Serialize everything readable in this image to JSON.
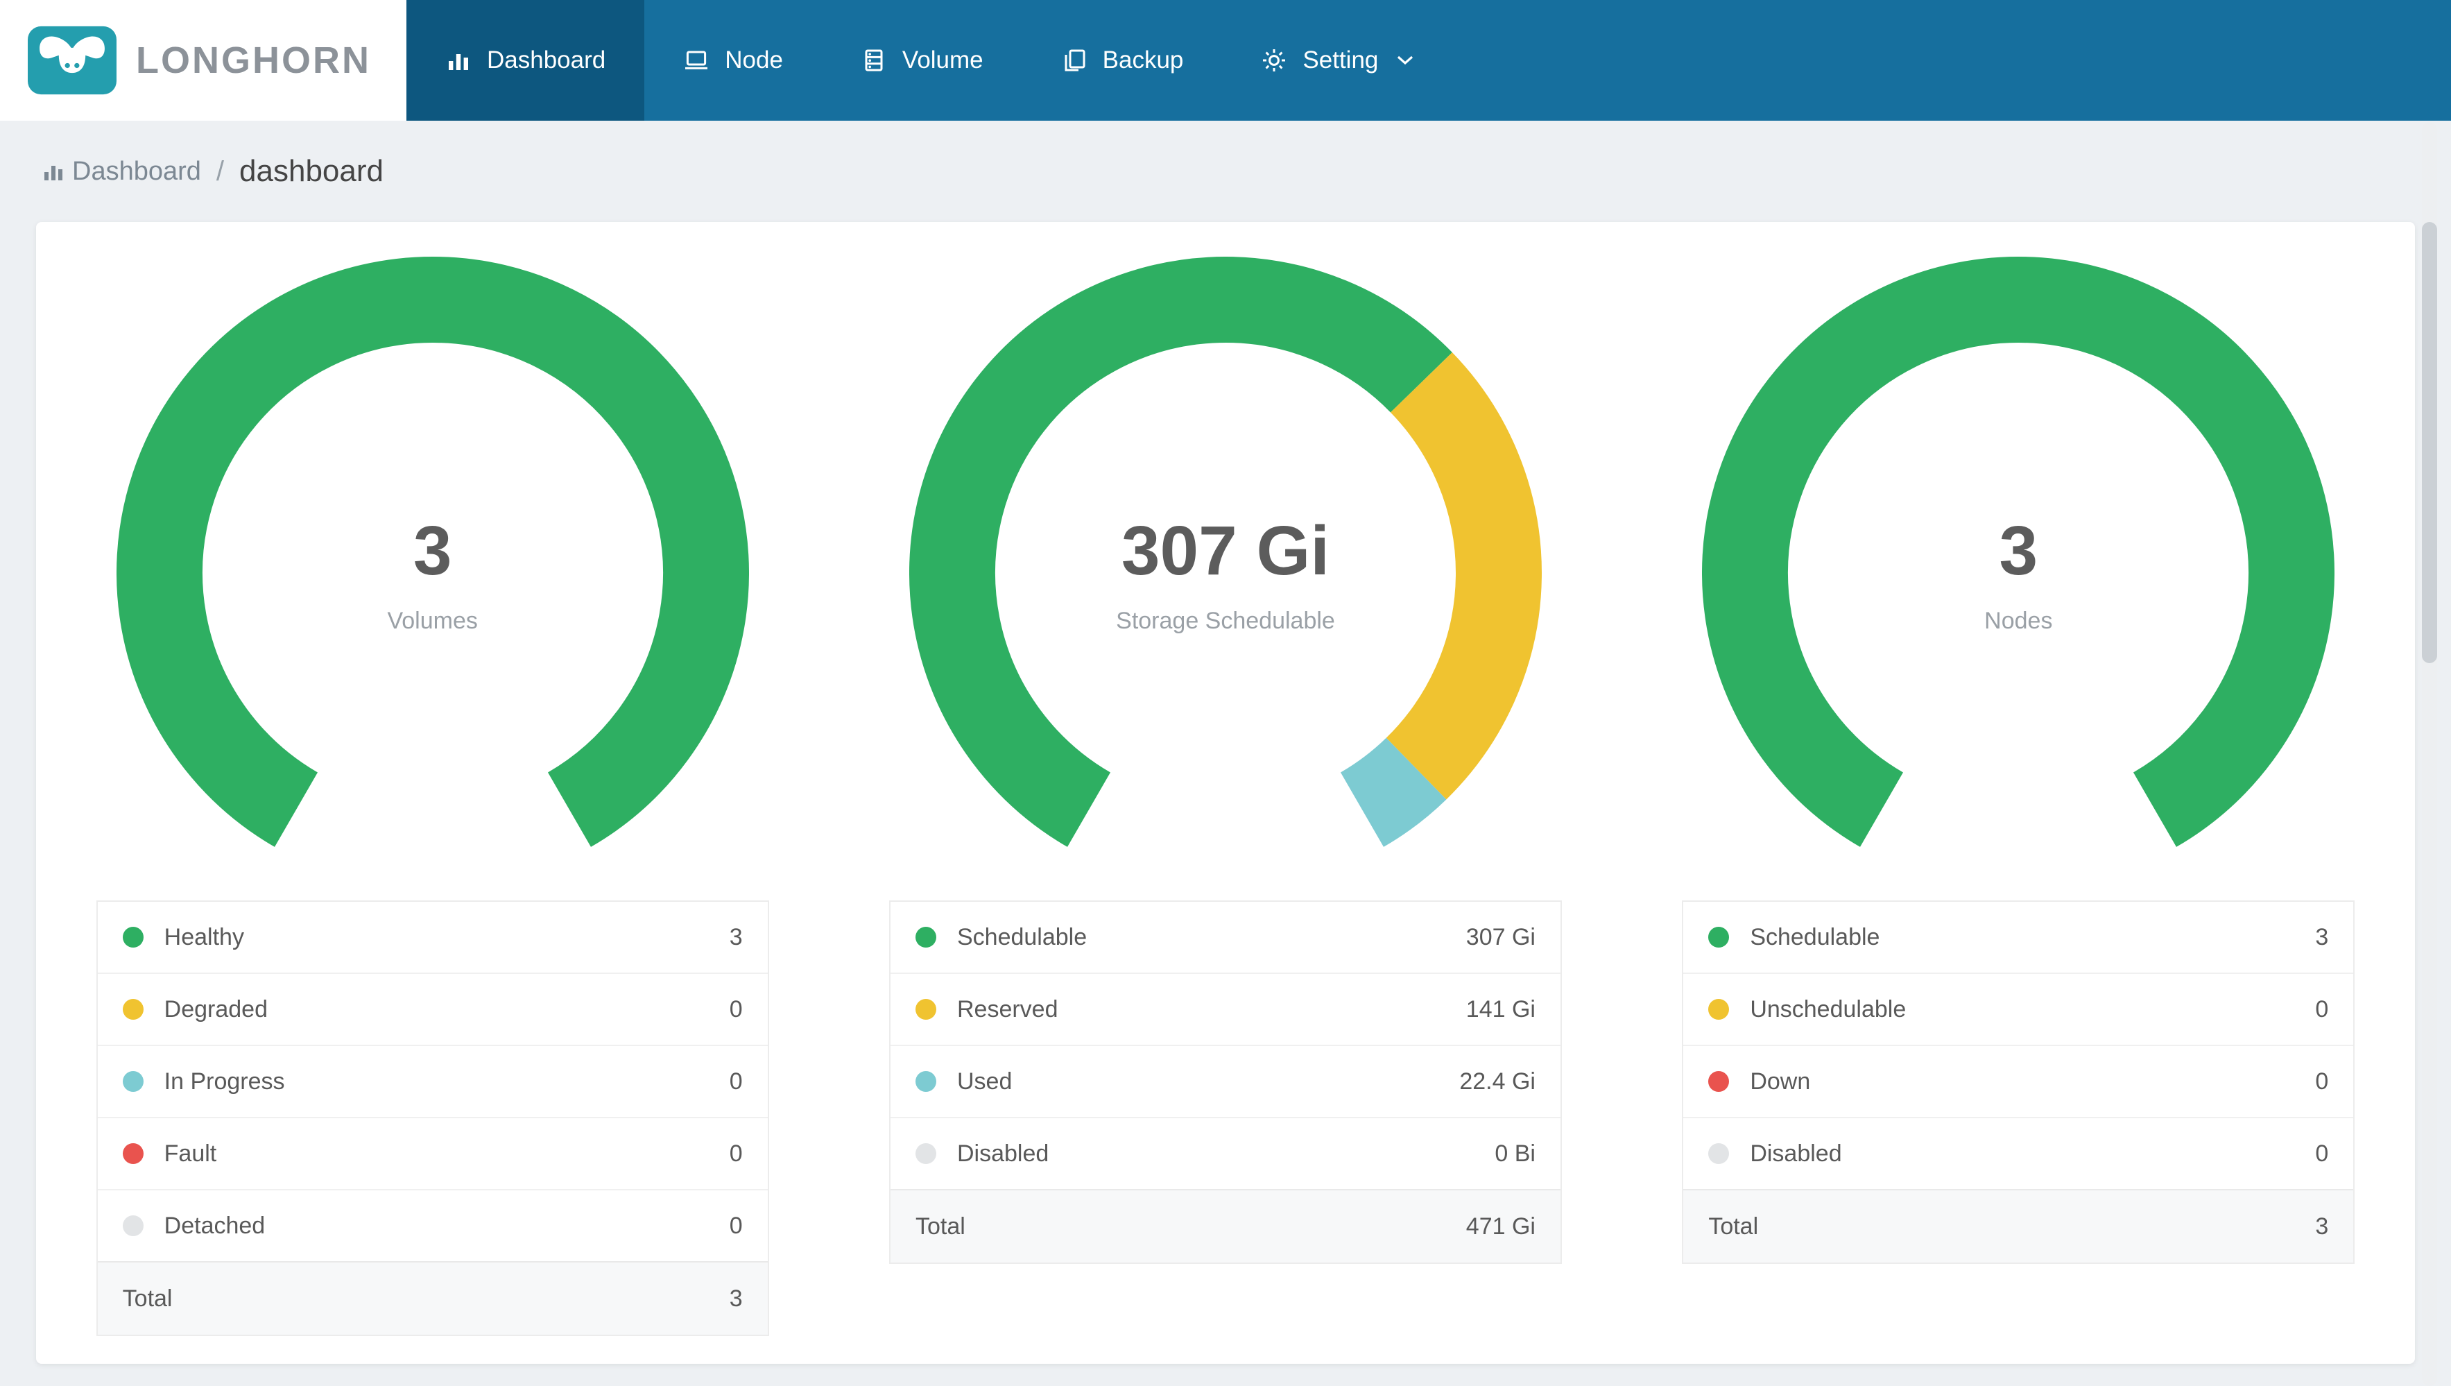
{
  "colors": {
    "green": "#2EAF62",
    "yellow": "#F0C330",
    "teal": "#7DCBD2",
    "red": "#E9534E",
    "gray": "#E2E4E6",
    "navbar": "#166F9E",
    "navbar_active": "#0D577F",
    "logo_teal": "#249EAE"
  },
  "brand": {
    "name": "LONGHORN"
  },
  "navbar": {
    "items": [
      {
        "label": "Dashboard",
        "icon": "bar-chart-icon",
        "active": true
      },
      {
        "label": "Node",
        "icon": "laptop-icon",
        "active": false
      },
      {
        "label": "Volume",
        "icon": "database-icon",
        "active": false
      },
      {
        "label": "Backup",
        "icon": "copy-icon",
        "active": false
      },
      {
        "label": "Setting",
        "icon": "gear-icon",
        "active": false,
        "has_dropdown": true
      }
    ]
  },
  "breadcrumb": {
    "section": "Dashboard",
    "separator": "/",
    "page": "dashboard"
  },
  "chart_data": [
    {
      "type": "pie",
      "variant": "gauge-donut",
      "title": "Volumes",
      "center_value": "3",
      "center_label": "Volumes",
      "arc_span_degrees": 300,
      "total": 3,
      "segments": [
        {
          "name": "Healthy",
          "value": 3,
          "color": "#2EAF62"
        },
        {
          "name": "Degraded",
          "value": 0,
          "color": "#F0C330"
        },
        {
          "name": "In Progress",
          "value": 0,
          "color": "#7DCBD2"
        },
        {
          "name": "Fault",
          "value": 0,
          "color": "#E9534E"
        },
        {
          "name": "Detached",
          "value": 0,
          "color": "#E2E4E6"
        }
      ]
    },
    {
      "type": "pie",
      "variant": "gauge-donut",
      "title": "Storage Schedulable",
      "center_value": "307 Gi",
      "center_label": "Storage Schedulable",
      "arc_span_degrees": 300,
      "total": 470.4,
      "segments": [
        {
          "name": "Schedulable",
          "value": 307,
          "color": "#2EAF62"
        },
        {
          "name": "Reserved",
          "value": 141,
          "color": "#F0C330"
        },
        {
          "name": "Used",
          "value": 22.4,
          "color": "#7DCBD2"
        },
        {
          "name": "Disabled",
          "value": 0,
          "color": "#E2E4E6"
        }
      ]
    },
    {
      "type": "pie",
      "variant": "gauge-donut",
      "title": "Nodes",
      "center_value": "3",
      "center_label": "Nodes",
      "arc_span_degrees": 300,
      "total": 3,
      "segments": [
        {
          "name": "Schedulable",
          "value": 3,
          "color": "#2EAF62"
        },
        {
          "name": "Unschedulable",
          "value": 0,
          "color": "#F0C330"
        },
        {
          "name": "Down",
          "value": 0,
          "color": "#E9534E"
        },
        {
          "name": "Disabled",
          "value": 0,
          "color": "#E2E4E6"
        }
      ]
    }
  ],
  "legends": [
    {
      "rows": [
        {
          "label": "Healthy",
          "value": "3",
          "color": "#2EAF62"
        },
        {
          "label": "Degraded",
          "value": "0",
          "color": "#F0C330"
        },
        {
          "label": "In Progress",
          "value": "0",
          "color": "#7DCBD2"
        },
        {
          "label": "Fault",
          "value": "0",
          "color": "#E9534E"
        },
        {
          "label": "Detached",
          "value": "0",
          "color": "#E2E4E6"
        }
      ],
      "total_label": "Total",
      "total_value": "3"
    },
    {
      "rows": [
        {
          "label": "Schedulable",
          "value": "307 Gi",
          "color": "#2EAF62"
        },
        {
          "label": "Reserved",
          "value": "141 Gi",
          "color": "#F0C330"
        },
        {
          "label": "Used",
          "value": "22.4 Gi",
          "color": "#7DCBD2"
        },
        {
          "label": "Disabled",
          "value": "0 Bi",
          "color": "#E2E4E6"
        }
      ],
      "total_label": "Total",
      "total_value": "471 Gi"
    },
    {
      "rows": [
        {
          "label": "Schedulable",
          "value": "3",
          "color": "#2EAF62"
        },
        {
          "label": "Unschedulable",
          "value": "0",
          "color": "#F0C330"
        },
        {
          "label": "Down",
          "value": "0",
          "color": "#E9534E"
        },
        {
          "label": "Disabled",
          "value": "0",
          "color": "#E2E4E6"
        }
      ],
      "total_label": "Total",
      "total_value": "3"
    }
  ]
}
